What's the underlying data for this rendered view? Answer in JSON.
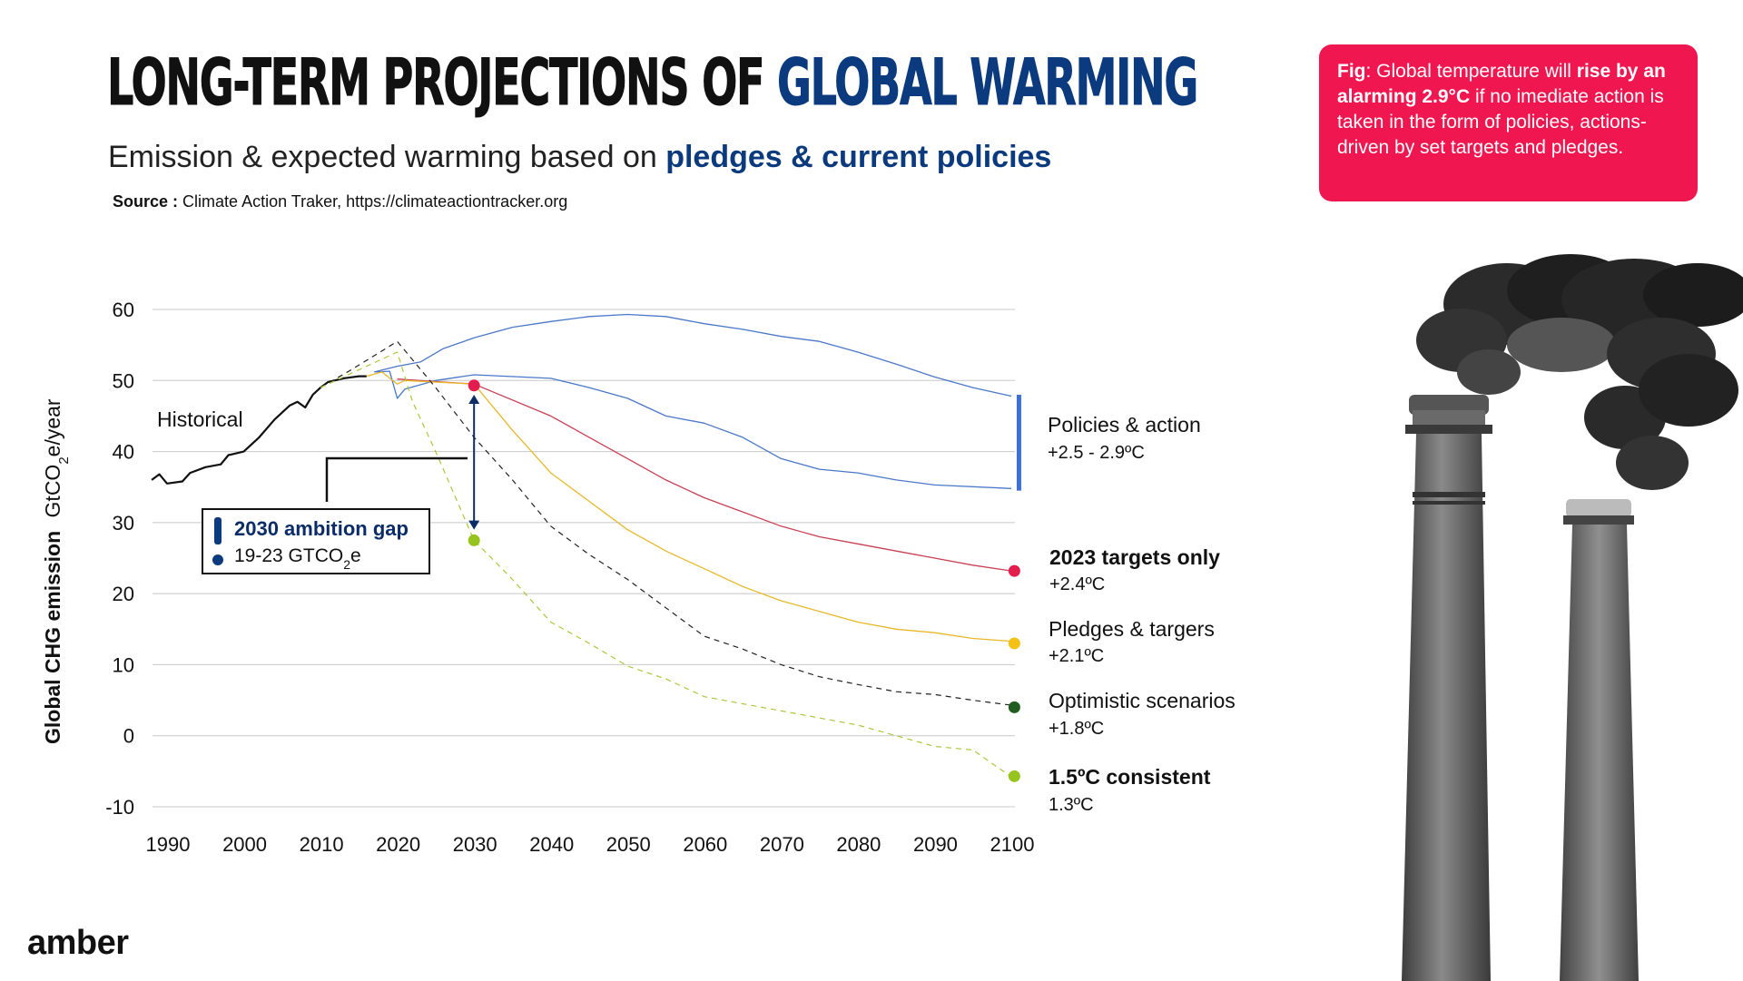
{
  "header": {
    "title_part1": "LONG-TERM PROJECTIONS OF",
    "title_part2": "GLOBAL WARMING",
    "subtitle_part1": "Emission & expected warming based on",
    "subtitle_part2": "pledges & current policies",
    "source_label": "Source :",
    "source_text": "Climate Action Traker, https://climateactiontracker.org"
  },
  "callout": {
    "fig_label": "Fig",
    "text1": ": Global temperature will",
    "bold1": "rise by an alarming 2.9°C",
    "text2": "if no imediate action is taken in the form of policies, actions-driven by set targets and pledges.",
    "bg_color": "#f0164f"
  },
  "brand": {
    "name": "amber"
  },
  "annotation": {
    "gap_title": "2030 ambition gap",
    "gap_range": "19-23 GTCO",
    "gap_sub": "2",
    "gap_suffix": "e",
    "icon": "exclamation-icon",
    "historical_label": "Historical"
  },
  "chart_data": {
    "type": "line",
    "title": "",
    "xlabel": "",
    "ylabel_prefix": "Global CHG emission",
    "ylabel_unit_main": "GtCO",
    "ylabel_unit_sub": "2",
    "ylabel_unit_end": "e/year",
    "ylim": [
      -10,
      60
    ],
    "xlim": [
      1990,
      2100
    ],
    "x_ticks": [
      "1990",
      "2000",
      "2010",
      "2020",
      "2030",
      "2040",
      "2050",
      "2060",
      "2070",
      "2080",
      "2090",
      "2100"
    ],
    "y_ticks": [
      "60",
      "50",
      "40",
      "30",
      "20",
      "10",
      "0",
      "-10"
    ],
    "y_tick_values": [
      60,
      50,
      40,
      30,
      20,
      10,
      0,
      -10
    ],
    "grid": true,
    "series": [
      {
        "key": "historical",
        "color": "#111111",
        "style": "solid",
        "width": 2.2,
        "points": [
          [
            1988,
            36
          ],
          [
            1989,
            36.8
          ],
          [
            1990,
            35.5
          ],
          [
            1992,
            35.8
          ],
          [
            1993,
            37
          ],
          [
            1995,
            37.8
          ],
          [
            1997,
            38.2
          ],
          [
            1998,
            39.5
          ],
          [
            2000,
            40
          ],
          [
            2002,
            42
          ],
          [
            2004,
            44.5
          ],
          [
            2006,
            46.5
          ],
          [
            2007,
            47
          ],
          [
            2008,
            46.2
          ],
          [
            2009,
            48
          ],
          [
            2010,
            49
          ],
          [
            2011,
            49.8
          ],
          [
            2013,
            50.3
          ],
          [
            2015,
            50.6
          ],
          [
            2016,
            50.6
          ]
        ]
      },
      {
        "key": "policies_upper",
        "color": "#4a78c8",
        "style": "solid",
        "width": 1.3,
        "points": [
          [
            2017,
            51.2
          ],
          [
            2020,
            52
          ],
          [
            2023,
            52.6
          ],
          [
            2026,
            54.5
          ],
          [
            2030,
            56
          ],
          [
            2035,
            57.5
          ],
          [
            2040,
            58.3
          ],
          [
            2045,
            59
          ],
          [
            2050,
            59.3
          ],
          [
            2055,
            59
          ],
          [
            2060,
            58
          ],
          [
            2065,
            57.2
          ],
          [
            2070,
            56.2
          ],
          [
            2075,
            55.5
          ],
          [
            2080,
            54
          ],
          [
            2085,
            52.3
          ],
          [
            2090,
            50.5
          ],
          [
            2095,
            49
          ],
          [
            2100,
            47.8
          ]
        ]
      },
      {
        "key": "policies_lower",
        "color": "#4a78c8",
        "style": "solid",
        "width": 1.3,
        "points": [
          [
            2017,
            51.2
          ],
          [
            2019,
            51.3
          ],
          [
            2020,
            47.5
          ],
          [
            2021,
            48.8
          ],
          [
            2025,
            50
          ],
          [
            2030,
            50.8
          ],
          [
            2040,
            50.3
          ],
          [
            2045,
            49
          ],
          [
            2050,
            47.5
          ],
          [
            2055,
            45
          ],
          [
            2060,
            44
          ],
          [
            2065,
            42
          ],
          [
            2070,
            39
          ],
          [
            2075,
            37.5
          ],
          [
            2080,
            37
          ],
          [
            2085,
            36
          ],
          [
            2090,
            35.3
          ],
          [
            2100,
            34.8
          ]
        ]
      },
      {
        "key": "targets_2023",
        "color": "#c94054",
        "style": "solid",
        "width": 1.3,
        "points": [
          [
            2020,
            50.2
          ],
          [
            2030,
            49.5
          ],
          [
            2040,
            45
          ],
          [
            2045,
            42
          ],
          [
            2050,
            39
          ],
          [
            2055,
            36
          ],
          [
            2060,
            33.5
          ],
          [
            2065,
            31.5
          ],
          [
            2070,
            29.5
          ],
          [
            2075,
            28
          ],
          [
            2080,
            27
          ],
          [
            2085,
            26
          ],
          [
            2090,
            25
          ],
          [
            2095,
            24
          ],
          [
            2100,
            23.2
          ]
        ]
      },
      {
        "key": "pledges",
        "color": "#e8b828",
        "style": "solid",
        "width": 1.3,
        "points": [
          [
            2016,
            50.6
          ],
          [
            2018,
            51.2
          ],
          [
            2020,
            49.5
          ],
          [
            2021,
            50
          ],
          [
            2030,
            49.5
          ],
          [
            2035,
            43
          ],
          [
            2040,
            37
          ],
          [
            2045,
            33
          ],
          [
            2050,
            29
          ],
          [
            2055,
            26
          ],
          [
            2060,
            23.5
          ],
          [
            2065,
            21
          ],
          [
            2070,
            19
          ],
          [
            2075,
            17.5
          ],
          [
            2080,
            16
          ],
          [
            2085,
            15
          ],
          [
            2090,
            14.5
          ],
          [
            2095,
            13.7
          ],
          [
            2100,
            13.3
          ]
        ]
      },
      {
        "key": "optimistic",
        "color": "#222222",
        "style": "dashed",
        "width": 1.2,
        "points": [
          [
            2010,
            49
          ],
          [
            2014,
            51.5
          ],
          [
            2017,
            53.5
          ],
          [
            2020,
            55.5
          ],
          [
            2025,
            49
          ],
          [
            2030,
            42
          ],
          [
            2035,
            36
          ],
          [
            2040,
            29.5
          ],
          [
            2045,
            25.5
          ],
          [
            2050,
            22
          ],
          [
            2055,
            18
          ],
          [
            2060,
            14
          ],
          [
            2065,
            12.2
          ],
          [
            2070,
            10
          ],
          [
            2075,
            8.3
          ],
          [
            2080,
            7.2
          ],
          [
            2085,
            6.2
          ],
          [
            2090,
            5.8
          ],
          [
            2095,
            5
          ],
          [
            2100,
            4.3
          ]
        ]
      },
      {
        "key": "consistent",
        "color": "#a8c838",
        "style": "dashed",
        "width": 1.2,
        "points": [
          [
            2010,
            49
          ],
          [
            2015,
            51.5
          ],
          [
            2020,
            54
          ],
          [
            2022,
            47
          ],
          [
            2025,
            40
          ],
          [
            2030,
            27.5
          ],
          [
            2035,
            22
          ],
          [
            2040,
            16
          ],
          [
            2045,
            13
          ],
          [
            2050,
            9.8
          ],
          [
            2055,
            8
          ],
          [
            2060,
            5.5
          ],
          [
            2065,
            4.5
          ],
          [
            2070,
            3.5
          ],
          [
            2075,
            2.5
          ],
          [
            2080,
            1.5
          ],
          [
            2085,
            0
          ],
          [
            2090,
            -1.5
          ],
          [
            2095,
            -2
          ],
          [
            2100,
            -5.8
          ]
        ]
      }
    ],
    "markers": [
      {
        "x": 2030,
        "y": 49.3,
        "color": "#e41d4f"
      },
      {
        "x": 2030,
        "y": 27.5,
        "color": "#97c31e"
      },
      {
        "x": 2100.4,
        "y": 23.2,
        "color": "#e41d4f"
      },
      {
        "x": 2100.4,
        "y": 13,
        "color": "#f4c217"
      },
      {
        "x": 2100.4,
        "y": 4,
        "color": "#215d1f"
      },
      {
        "x": 2100.4,
        "y": -5.7,
        "color": "#97c31e"
      }
    ],
    "range_bar": {
      "x": 2101,
      "y_top": 48,
      "y_bottom": 34.5,
      "color": "#3d6fd6"
    },
    "gap_arrow": {
      "x": 2030,
      "y_top": 48,
      "y_bottom": 29
    },
    "legend": [
      {
        "label": "Policies & action",
        "value": "+2.5 - 2.9ºC"
      },
      {
        "label": "2023 targets only",
        "value": "+2.4ºC"
      },
      {
        "label": "Pledges & targers",
        "value": "+2.1ºC"
      },
      {
        "label": "Optimistic scenarios",
        "value": "+1.8ºC"
      },
      {
        "label": "1.5ºC consistent",
        "value": "1.3ºC"
      }
    ],
    "legend_placement": "right"
  }
}
